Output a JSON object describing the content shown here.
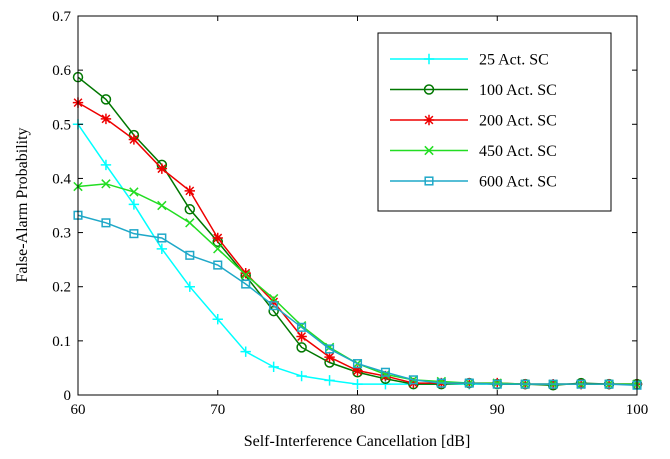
{
  "chart_data": {
    "type": "line",
    "xlabel": "Self-Interference Cancellation [dB]",
    "ylabel": "False-Alarm Probability",
    "xlim": [
      60,
      100
    ],
    "ylim": [
      0,
      0.7
    ],
    "xticks": [
      "60",
      "70",
      "80",
      "90",
      "100"
    ],
    "yticks": [
      "0",
      "0.1",
      "0.2",
      "0.3",
      "0.4",
      "0.5",
      "0.6",
      "0.7"
    ],
    "grid": false,
    "legend_position": "top-right",
    "x": [
      60,
      62,
      64,
      66,
      68,
      70,
      72,
      74,
      76,
      78,
      80,
      82,
      84,
      86,
      88,
      90,
      92,
      94,
      96,
      98,
      100
    ],
    "series": [
      {
        "name": "25 Act. SC",
        "color": "#00ffff",
        "marker": "plus",
        "values": [
          0.5,
          0.425,
          0.352,
          0.27,
          0.2,
          0.14,
          0.08,
          0.052,
          0.035,
          0.027,
          0.02,
          0.02,
          0.02,
          0.02,
          0.02,
          0.02,
          0.02,
          0.02,
          0.02,
          0.02,
          0.02
        ]
      },
      {
        "name": "100 Act. SC",
        "color": "#007700",
        "marker": "circle",
        "values": [
          0.587,
          0.546,
          0.48,
          0.425,
          0.343,
          0.283,
          0.22,
          0.155,
          0.088,
          0.06,
          0.042,
          0.03,
          0.02,
          0.02,
          0.022,
          0.02,
          0.02,
          0.018,
          0.022,
          0.02,
          0.02
        ]
      },
      {
        "name": "200 Act. SC",
        "color": "#ee0000",
        "marker": "asterisk",
        "values": [
          0.54,
          0.51,
          0.472,
          0.418,
          0.377,
          0.29,
          0.225,
          0.172,
          0.108,
          0.07,
          0.045,
          0.035,
          0.022,
          0.022,
          0.022,
          0.022,
          0.02,
          0.02,
          0.02,
          0.02,
          0.02
        ]
      },
      {
        "name": "450 Act. SC",
        "color": "#22dd22",
        "marker": "x",
        "values": [
          0.385,
          0.39,
          0.375,
          0.35,
          0.318,
          0.27,
          0.222,
          0.178,
          0.128,
          0.088,
          0.058,
          0.038,
          0.028,
          0.025,
          0.022,
          0.022,
          0.02,
          0.02,
          0.02,
          0.02,
          0.02
        ]
      },
      {
        "name": "600 Act. SC",
        "color": "#1fa8c8",
        "marker": "square",
        "values": [
          0.332,
          0.318,
          0.298,
          0.29,
          0.258,
          0.24,
          0.205,
          0.165,
          0.125,
          0.085,
          0.058,
          0.042,
          0.028,
          0.022,
          0.022,
          0.02,
          0.02,
          0.02,
          0.02,
          0.02,
          0.018
        ]
      }
    ]
  }
}
